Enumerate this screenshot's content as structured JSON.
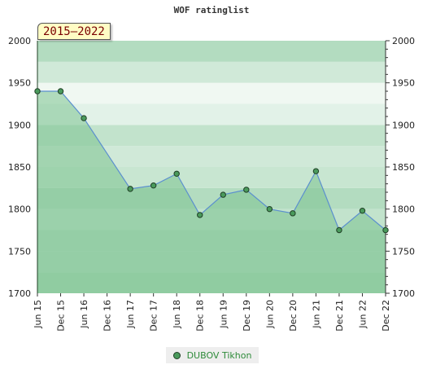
{
  "chart_data": {
    "type": "area",
    "title": "WOF ratinglist",
    "period_badge": "2015–2022",
    "ylim": [
      1700,
      2000
    ],
    "yticks": [
      1700,
      1750,
      1800,
      1850,
      1900,
      1950,
      2000
    ],
    "categories": [
      "Jun 15",
      "Dec 15",
      "Jun 16",
      "Dec 16",
      "Jun 17",
      "Dec 17",
      "Jun 18",
      "Dec 18",
      "Jun 19",
      "Dec 19",
      "Jun 20",
      "Dec 20",
      "Jun 21",
      "Dec 21",
      "Jun 22",
      "Dec 22"
    ],
    "series": [
      {
        "name": "DUBOV Tikhon",
        "values": [
          1940,
          1940,
          1908,
          null,
          1824,
          1828,
          1842,
          1793,
          1817,
          1823,
          1800,
          1795,
          1845,
          1775,
          1798,
          1775
        ]
      }
    ],
    "grid": true,
    "legend_position": "bottom-center",
    "colors": {
      "line": "#5b8fcf",
      "area_fill": "#7cc28f",
      "marker_fill": "#4a9a5c",
      "marker_stroke": "#1f3f25",
      "band_dark": "#b3dcc0",
      "band_light": "#d4ecdc"
    }
  }
}
